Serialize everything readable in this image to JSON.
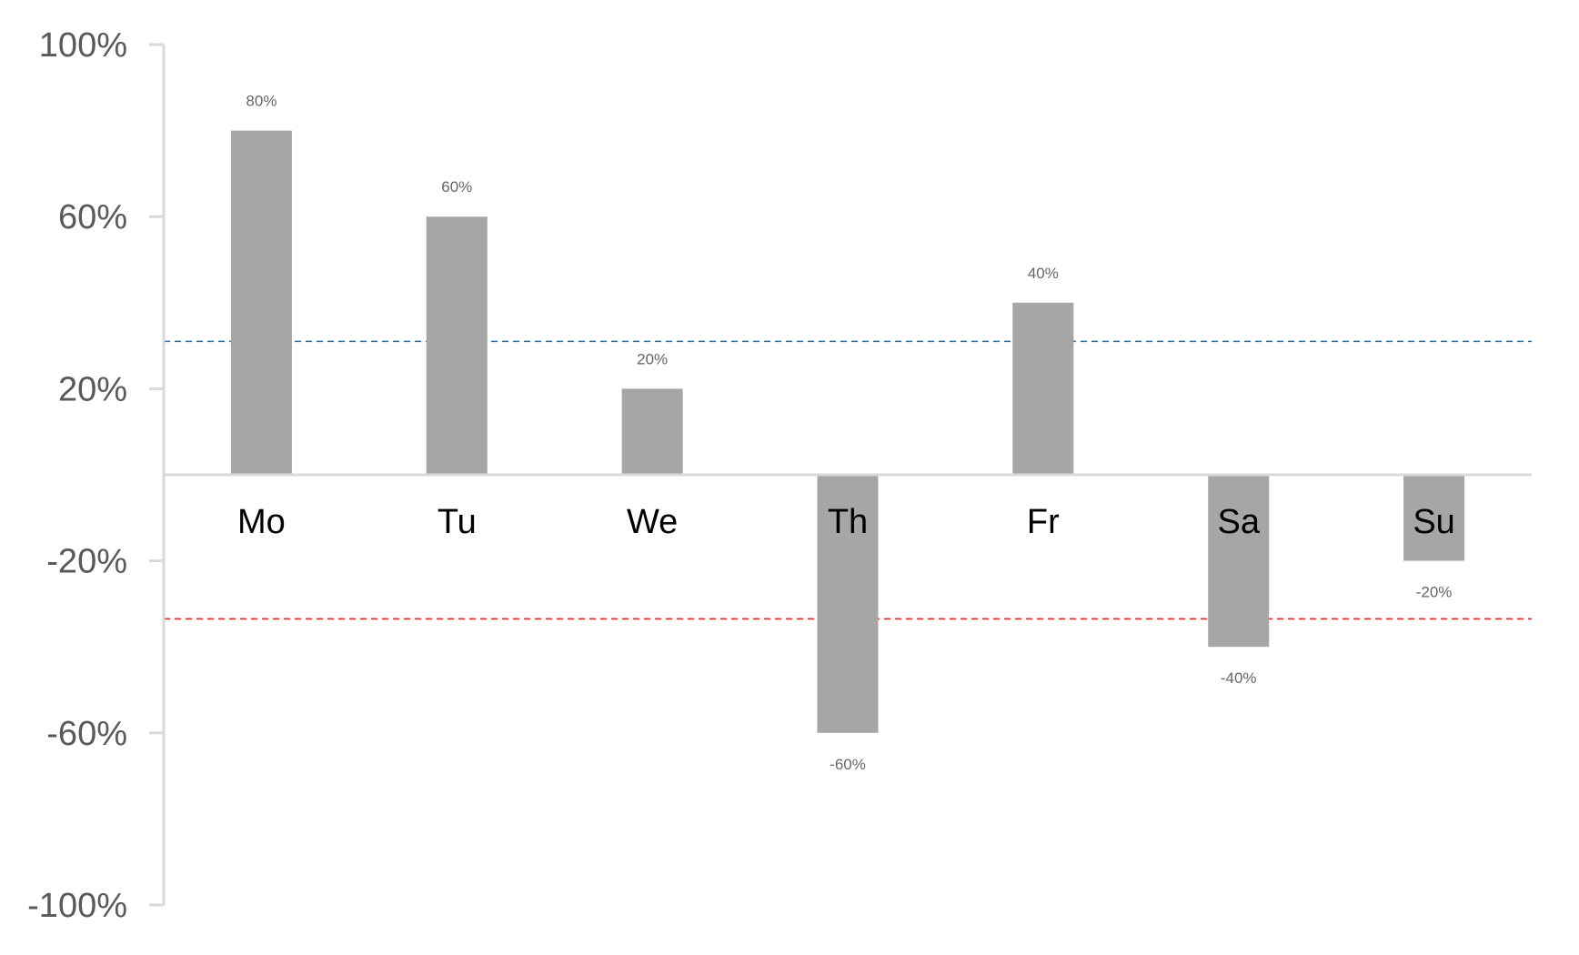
{
  "chart_data": {
    "type": "bar",
    "categories": [
      "Mo",
      "Tu",
      "We",
      "Th",
      "Fr",
      "Sa",
      "Su"
    ],
    "values": [
      0.8,
      0.6,
      0.2,
      -0.6,
      0.4,
      -0.4,
      -0.2
    ],
    "data_labels": [
      "80%",
      "60%",
      "20%",
      "-60%",
      "40%",
      "-40%",
      "-20%"
    ],
    "y_ticks": [
      1.0,
      0.6,
      0.2,
      -0.2,
      -0.6,
      -1.0
    ],
    "y_tick_labels": [
      "100%",
      "60%",
      "20%",
      "-20%",
      "-60%",
      "-100%"
    ],
    "ylim": [
      -1.0,
      1.0
    ],
    "reference_lines": [
      {
        "value": 0.31,
        "color": "#2e6da4",
        "style": "dashed"
      },
      {
        "value": -0.335,
        "color": "#e0201b",
        "style": "dashed"
      }
    ],
    "bar_color": "#a6a6a6",
    "axis_color": "#d9d9d9",
    "grid": false,
    "title": "",
    "xlabel": "",
    "ylabel": ""
  }
}
